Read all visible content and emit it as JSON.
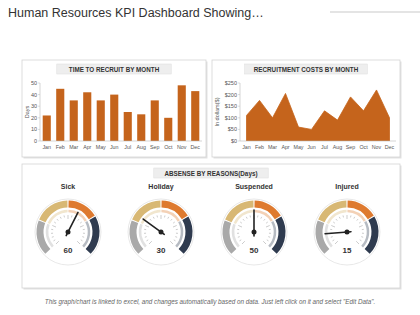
{
  "page_title": "Human Resources KPI Dashboard Showing…",
  "footnote": "This graph/chart is linked to excel, and changes automatically based on data.  Just left click on it and select \"Edit Data\".",
  "chart_data": [
    {
      "type": "bar",
      "title": "TIME TO RECRUIT BY MONTH",
      "ylabel": "Days",
      "categories": [
        "Jan",
        "Feb",
        "Mar",
        "Apr",
        "May",
        "Jun",
        "Jul",
        "Aug",
        "Sep",
        "Oct",
        "Nov",
        "Dec"
      ],
      "values": [
        22,
        45,
        35,
        42,
        35,
        40,
        25,
        23,
        35,
        20,
        48,
        43
      ],
      "color": "#c5641c",
      "ylim": [
        0,
        50
      ],
      "yticks": [
        0,
        10,
        20,
        30,
        40,
        50
      ],
      "grid": false
    },
    {
      "type": "area",
      "title": "RECRUITMENT COSTS BY MONTH",
      "ylabel": "In dollars($)",
      "categories": [
        "Jan",
        "Feb",
        "Mar",
        "Apr",
        "May",
        "Jun",
        "Jul",
        "Aug",
        "Sep",
        "Oct",
        "Nov",
        "Dec"
      ],
      "values": [
        110,
        175,
        100,
        205,
        60,
        50,
        130,
        90,
        190,
        130,
        220,
        100
      ],
      "color": "#c5641c",
      "ylim": [
        0,
        250
      ],
      "yticks": [
        {
          "value": 0,
          "label": "$0"
        },
        {
          "value": 50,
          "label": "$50"
        },
        {
          "value": 100,
          "label": "$100"
        },
        {
          "value": 150,
          "label": "$150"
        },
        {
          "value": 200,
          "label": "$200"
        },
        {
          "value": 250,
          "label": "$250"
        }
      ],
      "grid": false
    },
    {
      "type": "gauge",
      "title": "ABSENSE BY REASONS(Days)",
      "categories": [
        "Sick",
        "Holiday",
        "Suspended",
        "Injured"
      ],
      "values": [
        60,
        30,
        50,
        15
      ],
      "ylim": [
        0,
        100
      ],
      "data_labels": true,
      "tick_labels": false
    }
  ]
}
